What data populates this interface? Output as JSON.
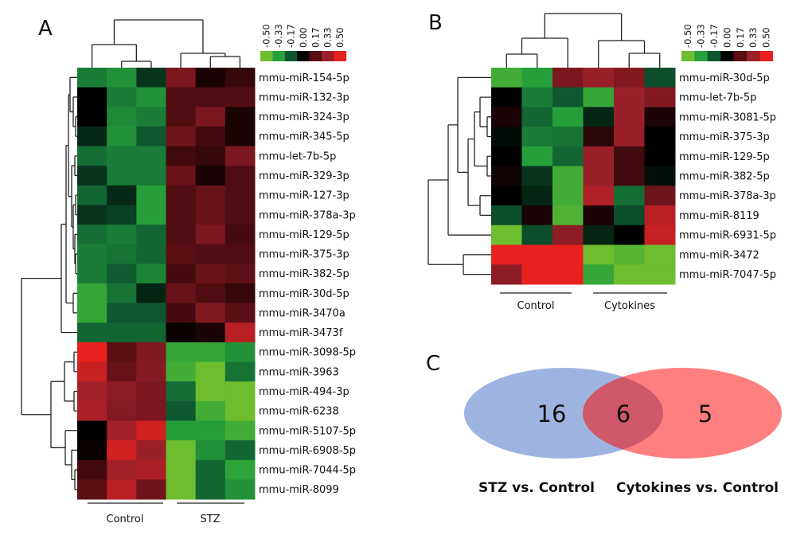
{
  "panels": {
    "a": "A",
    "b": "B",
    "c": "C"
  },
  "colorscale": {
    "ticks": [
      "-0.50",
      "-0.33",
      "-0.17",
      "0.00",
      "0.17",
      "0.33",
      "0.50"
    ],
    "colors": [
      "#6dbd2f",
      "#27a03b",
      "#0d5730",
      "#000000",
      "#5a0e14",
      "#9a2029",
      "#e8211f"
    ]
  },
  "chart_data": [
    {
      "type": "heatmap",
      "panel": "A",
      "range": [
        -0.5,
        0.5
      ],
      "groups": [
        {
          "label": "Control",
          "columns": 3
        },
        {
          "label": "STZ",
          "columns": 3
        }
      ],
      "rows": [
        "mmu-miR-154-5p",
        "mmu-miR-132-3p",
        "mmu-miR-324-3p",
        "mmu-miR-345-5p",
        "mmu-let-7b-5p",
        "mmu-miR-329-3p",
        "mmu-miR-127-3p",
        "mmu-miR-378a-3p",
        "mmu-miR-129-5p",
        "mmu-miR-375-3p",
        "mmu-miR-382-5p",
        "mmu-miR-30d-5p",
        "mmu-miR-3470a",
        "mmu-miR-3473f",
        "mmu-miR-3098-5p",
        "mmu-miR-3963",
        "mmu-miR-494-3p",
        "mmu-miR-6238",
        "mmu-miR-5107-5p",
        "mmu-miR-6908-5p",
        "mmu-miR-7044-5p",
        "mmu-miR-8099"
      ],
      "values": [
        [
          -0.25,
          -0.3,
          -0.1,
          0.25,
          0.05,
          0.1
        ],
        [
          0.0,
          -0.25,
          -0.3,
          0.15,
          0.15,
          0.15
        ],
        [
          0.0,
          -0.28,
          -0.25,
          0.15,
          0.25,
          0.05
        ],
        [
          -0.08,
          -0.3,
          -0.17,
          0.22,
          0.12,
          0.05
        ],
        [
          -0.22,
          -0.25,
          -0.25,
          0.12,
          0.1,
          0.25
        ],
        [
          -0.1,
          -0.25,
          -0.25,
          0.2,
          0.05,
          0.15
        ],
        [
          -0.2,
          -0.08,
          -0.33,
          0.15,
          0.2,
          0.15
        ],
        [
          -0.1,
          -0.12,
          -0.33,
          0.15,
          0.2,
          0.15
        ],
        [
          -0.22,
          -0.25,
          -0.2,
          0.15,
          0.25,
          0.13
        ],
        [
          -0.25,
          -0.23,
          -0.2,
          0.17,
          0.15,
          0.15
        ],
        [
          -0.25,
          -0.18,
          -0.27,
          0.13,
          0.2,
          0.18
        ],
        [
          -0.37,
          -0.23,
          -0.07,
          0.2,
          0.15,
          0.1
        ],
        [
          -0.37,
          -0.17,
          -0.17,
          0.13,
          0.27,
          0.17
        ],
        [
          -0.2,
          -0.2,
          -0.2,
          0.02,
          0.05,
          0.4
        ],
        [
          0.5,
          0.17,
          0.27,
          -0.37,
          -0.37,
          -0.3
        ],
        [
          0.43,
          0.2,
          0.28,
          -0.4,
          -0.5,
          -0.23
        ],
        [
          0.35,
          0.3,
          0.25,
          -0.22,
          -0.5,
          -0.5
        ],
        [
          0.37,
          0.28,
          0.25,
          -0.17,
          -0.4,
          -0.5
        ],
        [
          0.0,
          0.35,
          0.45,
          -0.33,
          -0.33,
          -0.4
        ],
        [
          0.02,
          0.45,
          0.33,
          -0.5,
          -0.3,
          -0.2
        ],
        [
          0.12,
          0.35,
          0.37,
          -0.5,
          -0.2,
          -0.35
        ],
        [
          0.17,
          0.4,
          0.22,
          -0.5,
          -0.2,
          -0.3
        ]
      ]
    },
    {
      "type": "heatmap",
      "panel": "B",
      "range": [
        -0.5,
        0.5
      ],
      "groups": [
        {
          "label": "Control",
          "columns": 3
        },
        {
          "label": "Cytokines",
          "columns": 3
        }
      ],
      "rows": [
        "mmu-miR-30d-5p",
        "mmu-let-7b-5p",
        "mmu-miR-3081-5p",
        "mmu-miR-375-3p",
        "mmu-miR-129-5p",
        "mmu-miR-382-5p",
        "mmu-miR-378a-3p",
        "mmu-miR-8119",
        "mmu-miR-6931-5p",
        "mmu-miR-3472",
        "mmu-miR-7047-5p"
      ],
      "values": [
        [
          -0.4,
          -0.33,
          0.25,
          0.33,
          0.27,
          -0.15
        ],
        [
          0.0,
          -0.25,
          -0.17,
          -0.37,
          0.33,
          0.27
        ],
        [
          0.05,
          -0.2,
          -0.33,
          -0.07,
          0.33,
          0.05
        ],
        [
          -0.02,
          -0.25,
          -0.23,
          0.08,
          0.33,
          0.0
        ],
        [
          0.0,
          -0.33,
          -0.2,
          0.33,
          0.12,
          0.0
        ],
        [
          0.03,
          -0.1,
          -0.4,
          0.33,
          0.12,
          -0.03
        ],
        [
          0.0,
          -0.07,
          -0.4,
          0.38,
          -0.22,
          0.22
        ],
        [
          -0.15,
          0.05,
          -0.43,
          0.05,
          -0.15,
          0.4
        ],
        [
          -0.5,
          -0.15,
          0.3,
          -0.07,
          0.0,
          0.42
        ],
        [
          0.5,
          0.5,
          0.5,
          -0.5,
          -0.45,
          -0.5
        ],
        [
          0.3,
          0.5,
          0.5,
          -0.37,
          -0.5,
          -0.5
        ]
      ]
    },
    {
      "type": "venn",
      "panel": "C",
      "sets": [
        {
          "label": "STZ vs. Control",
          "only": 16,
          "color": "#9db4e0"
        },
        {
          "label": "Cytokines vs. Control",
          "only": 5,
          "color": "#fe7f80"
        }
      ],
      "intersection": 6,
      "intersection_color": "#cf586b"
    }
  ]
}
